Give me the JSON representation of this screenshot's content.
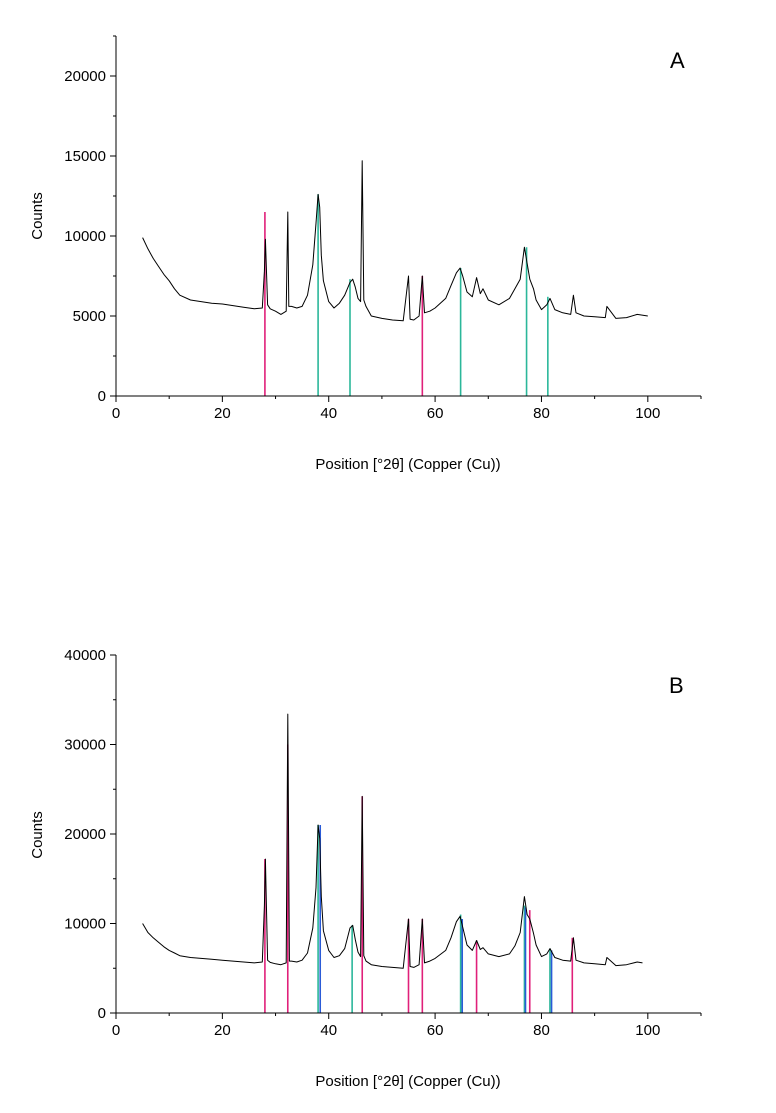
{
  "chart_data": [
    {
      "type": "line",
      "panel_label": "A",
      "xlabel": "Position [°2θ] (Copper (Cu))",
      "ylabel": "Counts",
      "xlim": [
        0,
        110
      ],
      "ylim": [
        0,
        22500
      ],
      "xticks": [
        0,
        20,
        40,
        60,
        80,
        100
      ],
      "yticks": [
        0,
        5000,
        10000,
        15000,
        20000
      ],
      "grid": false,
      "series": [
        {
          "kind": "pattern",
          "color": "#000000",
          "x": [
            5,
            6,
            7,
            8,
            9,
            10,
            11,
            12,
            14,
            16,
            18,
            20,
            22,
            24,
            26,
            27.5,
            27.9,
            28.1,
            28.5,
            29,
            30,
            31,
            32,
            32.3,
            32.5,
            33,
            34,
            35,
            36,
            37,
            37.6,
            38.0,
            38.3,
            38.6,
            39,
            40,
            41,
            42,
            43,
            44,
            44.5,
            45,
            45.5,
            46,
            46.3,
            46.6,
            47,
            48,
            50,
            52,
            54,
            55.0,
            55.3,
            56,
            57,
            57.6,
            58,
            59,
            60,
            62,
            63,
            64,
            64.7,
            65.2,
            66,
            67,
            67.8,
            68.5,
            69,
            70,
            72,
            74,
            75,
            76,
            76.8,
            77.3,
            77.8,
            78.5,
            79,
            80,
            81,
            81.6,
            82.5,
            84,
            85.5,
            86,
            86.5,
            88,
            90,
            92,
            92.3,
            94,
            96,
            98,
            100
          ],
          "y": [
            9900,
            9200,
            8600,
            8100,
            7600,
            7200,
            6700,
            6300,
            6000,
            5900,
            5800,
            5750,
            5650,
            5550,
            5450,
            5500,
            7800,
            9800,
            5700,
            5450,
            5300,
            5100,
            5300,
            11500,
            5600,
            5600,
            5500,
            5600,
            6300,
            8200,
            10800,
            12600,
            11800,
            8800,
            7200,
            5900,
            5500,
            5800,
            6300,
            7100,
            7300,
            6800,
            6100,
            5900,
            14700,
            6000,
            5600,
            5000,
            4850,
            4750,
            4700,
            7500,
            4800,
            4750,
            5000,
            7500,
            5200,
            5300,
            5500,
            6100,
            6900,
            7700,
            8000,
            7500,
            6500,
            6200,
            7400,
            6400,
            6700,
            6000,
            5700,
            6100,
            6700,
            7300,
            9300,
            8300,
            7300,
            6700,
            6000,
            5400,
            5700,
            6100,
            5400,
            5200,
            5100,
            6300,
            5200,
            5000,
            4950,
            4900,
            5600,
            4850,
            4900,
            5100,
            5000
          ]
        }
      ],
      "reference_lines": [
        {
          "color": "#e0207a",
          "positions": [
            28.0,
            57.6
          ],
          "heights": [
            11500,
            7500
          ]
        },
        {
          "color": "#2bb79a",
          "positions": [
            38.0,
            44.0,
            64.8,
            77.2,
            81.2
          ],
          "heights": [
            12600,
            7300,
            8000,
            9300,
            6200
          ]
        }
      ]
    },
    {
      "type": "line",
      "panel_label": "B",
      "xlabel": "Position [°2θ] (Copper (Cu))",
      "ylabel": "Counts",
      "xlim": [
        0,
        110
      ],
      "ylim": [
        0,
        40000
      ],
      "xticks": [
        0,
        20,
        40,
        60,
        80,
        100
      ],
      "yticks": [
        0,
        10000,
        20000,
        30000,
        40000
      ],
      "grid": false,
      "series": [
        {
          "kind": "pattern",
          "color": "#000000",
          "x": [
            5,
            6,
            7,
            8,
            9,
            10,
            11,
            12,
            14,
            16,
            18,
            20,
            22,
            24,
            26,
            27.5,
            27.9,
            28.1,
            28.5,
            29,
            30,
            31,
            32,
            32.3,
            32.6,
            33,
            34,
            35,
            36,
            37,
            37.6,
            38.0,
            38.3,
            38.6,
            39,
            40,
            41,
            42,
            43,
            44,
            44.5,
            45,
            45.5,
            46,
            46.3,
            46.6,
            47,
            48,
            50,
            52,
            54,
            55.0,
            55.3,
            56,
            57,
            57.6,
            58,
            59,
            60,
            62,
            63,
            64,
            64.7,
            65.2,
            66,
            67,
            67.8,
            68.5,
            69,
            70,
            72,
            74,
            75,
            76,
            76.8,
            77.3,
            77.8,
            78.5,
            79,
            80,
            81,
            81.6,
            82.5,
            84,
            85.5,
            86,
            86.5,
            88,
            90,
            92,
            92.3,
            94,
            96,
            98,
            99
          ],
          "y": [
            10000,
            9000,
            8400,
            7900,
            7400,
            7000,
            6700,
            6400,
            6200,
            6100,
            6000,
            5900,
            5800,
            5700,
            5600,
            5700,
            12000,
            17200,
            5900,
            5650,
            5500,
            5400,
            5600,
            33400,
            5800,
            5800,
            5700,
            5900,
            6700,
            9500,
            14000,
            21000,
            19500,
            13000,
            9200,
            7000,
            6200,
            6400,
            7200,
            9500,
            9800,
            8200,
            6800,
            6300,
            24200,
            6400,
            5800,
            5400,
            5200,
            5100,
            5000,
            10500,
            5200,
            5100,
            5400,
            10500,
            5600,
            5800,
            6100,
            7000,
            8400,
            10200,
            10800,
            9600,
            7600,
            7000,
            8100,
            7100,
            7300,
            6600,
            6300,
            6600,
            7500,
            9000,
            13000,
            11000,
            10500,
            8900,
            7600,
            6300,
            6600,
            7200,
            6200,
            5900,
            5800,
            8400,
            5900,
            5600,
            5500,
            5400,
            6200,
            5300,
            5400,
            5700,
            5600
          ]
        }
      ],
      "reference_lines": [
        {
          "color": "#e0207a",
          "positions": [
            28.0,
            32.3,
            46.3,
            55.0,
            57.6,
            67.8,
            77.8,
            85.8
          ],
          "heights": [
            17200,
            30000,
            24200,
            10500,
            10500,
            8100,
            11500,
            8400
          ]
        },
        {
          "color": "#2bb79a",
          "positions": [
            38.0,
            44.4,
            64.8,
            76.8,
            81.6
          ],
          "heights": [
            21000,
            9800,
            11000,
            12000,
            7200
          ]
        },
        {
          "color": "#2a5bd7",
          "positions": [
            38.4,
            65.1,
            77.0,
            81.9
          ],
          "heights": [
            21000,
            10500,
            11800,
            7000
          ]
        }
      ]
    }
  ]
}
